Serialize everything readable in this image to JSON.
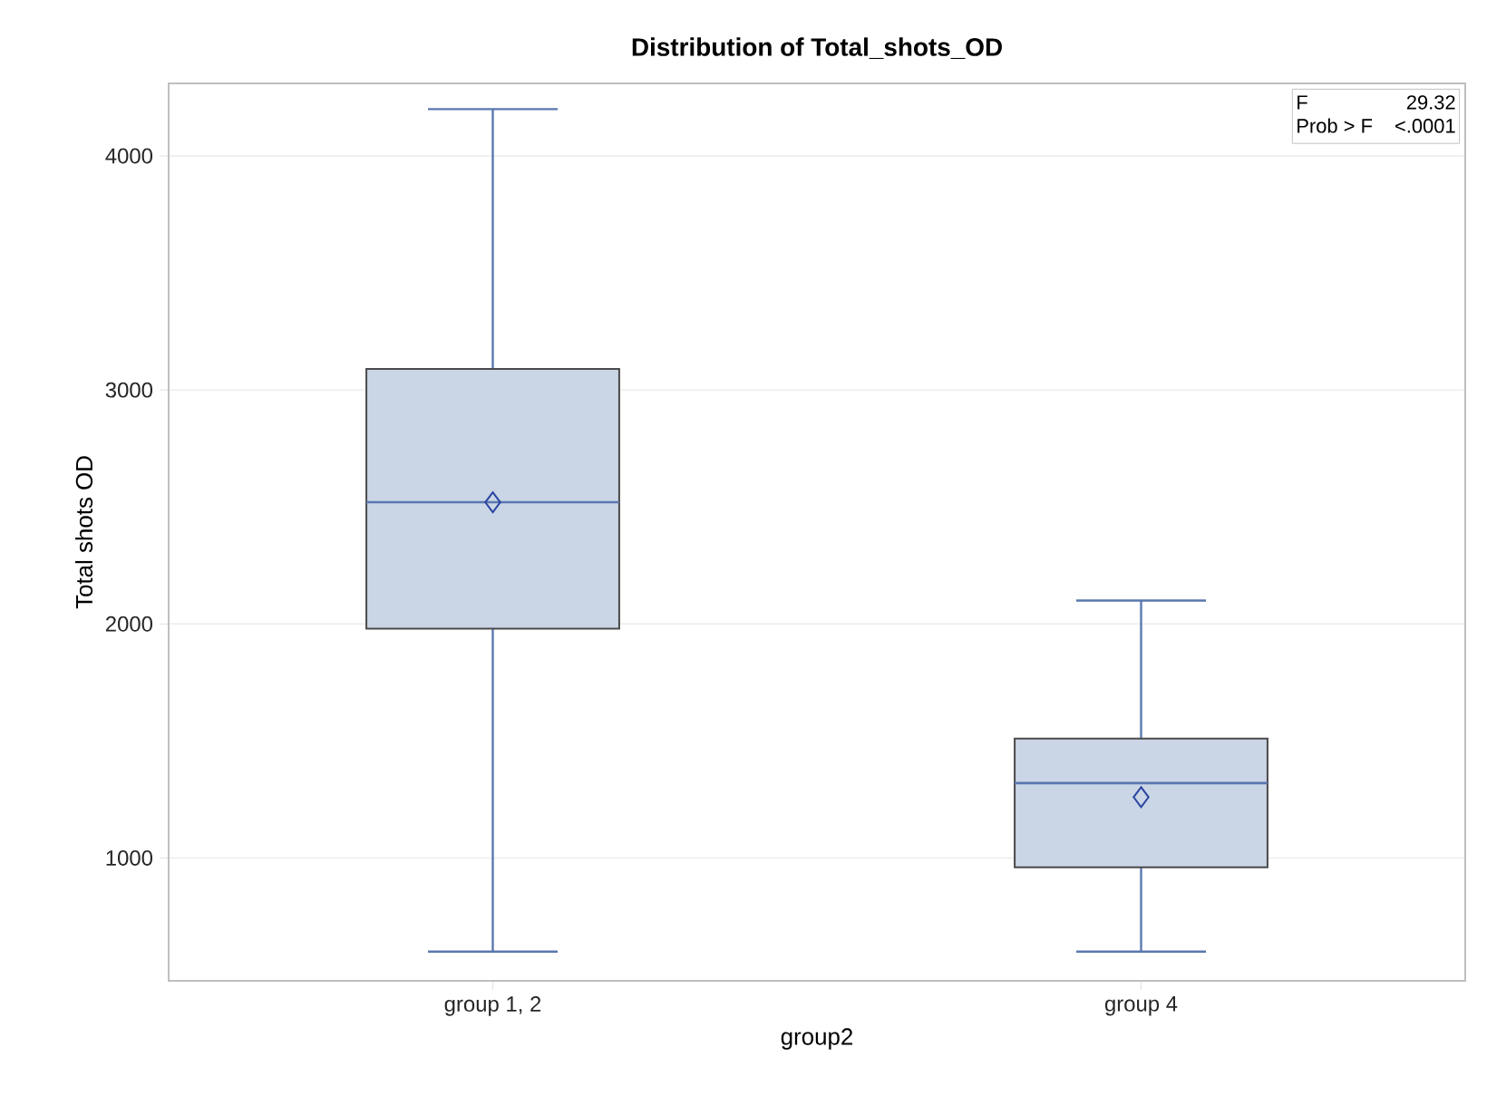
{
  "chart_data": {
    "type": "box",
    "title": "Distribution of Total_shots_OD",
    "xlabel": "group2",
    "ylabel": "Total shots OD",
    "categories": [
      "group 1, 2",
      "group 4"
    ],
    "boxes": [
      {
        "low": 600,
        "q1": 1980,
        "median": 2520,
        "q3": 3090,
        "high": 4200,
        "mean": 2520
      },
      {
        "low": 600,
        "q1": 960,
        "median": 1320,
        "q3": 1510,
        "high": 2100,
        "mean": 1260
      }
    ],
    "color": "#cad5e6",
    "ylim": [
      475,
      4310
    ],
    "yticks": [
      1000,
      2000,
      3000,
      4000
    ],
    "grid": "y",
    "annotations": [
      "F",
      "29.32",
      "Prob > F",
      "<.0001"
    ]
  }
}
